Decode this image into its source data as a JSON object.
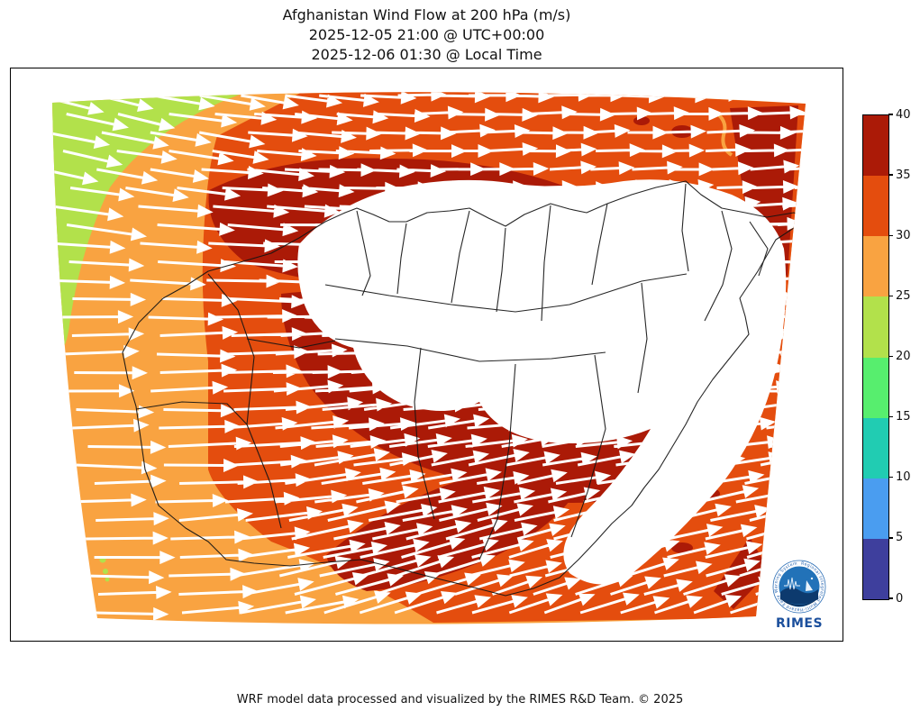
{
  "header": {
    "title": "Afghanistan Wind Flow at 200 hPa (m/s)",
    "subtitle_utc": "2025-12-05 21:00 @ UTC+00:00",
    "subtitle_local": "2025-12-06 01:30 @ Local Time"
  },
  "footer": {
    "credit": "WRF model data processed and visualized by the RIMES R&D Team. © 2025"
  },
  "colorbar": {
    "min": 0,
    "max": 40,
    "ticks": [
      0,
      5,
      10,
      15,
      20,
      25,
      30,
      35,
      40
    ],
    "segment_colors_bottom_to_top": [
      "#3e3f9d",
      "#4a9df0",
      "#21ccb2",
      "#57ee6e",
      "#b2e14b",
      "#f9a341",
      "#e44d0e",
      "#ab1a07"
    ]
  },
  "logo": {
    "org": "RIMES",
    "ring_text": "Regional Integrated Multi-Hazard Early Warning System"
  },
  "map": {
    "country": "Afghanistan",
    "border_color": "#141414",
    "arrow_color": "#ffffff"
  },
  "chart_data": {
    "type": "heatmap",
    "title": "Afghanistan Wind Flow at 200 hPa (m/s)",
    "subtitle_utc": "2025-12-05 21:00 @ UTC+00:00",
    "subtitle_local": "2025-12-06 01:30 @ Local Time",
    "variable": "wind speed at 200 hPa",
    "units": "m/s",
    "legend_position": "right",
    "colorbar_levels": [
      0,
      5,
      10,
      15,
      20,
      25,
      30,
      35,
      40
    ],
    "colorbar_colors": [
      "#3e3f9d",
      "#4a9df0",
      "#21ccb2",
      "#57ee6e",
      "#b2e14b",
      "#f9a341",
      "#e44d0e",
      "#ab1a07"
    ],
    "flow": {
      "style": "quiver arrows over filled speed contours",
      "arrow_color": "#ffffff",
      "dominant_direction": "westerly (west to east), tilting northeastward in the southern half and southeastward near the northwest corner"
    },
    "speed_regions": [
      {
        "range": [
          20,
          25
        ],
        "color": "#b2e14b",
        "location": "northwest corner wedge and tiny spots on the lower-left domain edge"
      },
      {
        "range": [
          25,
          30
        ],
        "color": "#f9a341",
        "location": "western band and southwest quadrant"
      },
      {
        "range": [
          30,
          35
        ],
        "color": "#e44d0e",
        "location": "broad center, top band and southeast sector"
      },
      {
        "range": [
          35,
          40
        ],
        "color": "#ab1a07",
        "location": "bands flanking the jet core over central and eastern Afghanistan"
      },
      {
        "range": [
          40,
          null
        ],
        "color": "#ffffff",
        "location": "jet core above colorbar maximum (unfilled white) across north-central Afghanistan extending southeast"
      }
    ]
  }
}
